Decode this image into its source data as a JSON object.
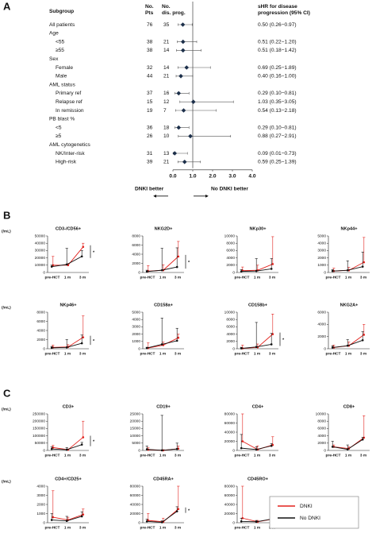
{
  "panel_labels": [
    "A",
    "B",
    "C"
  ],
  "legend": [
    {
      "name": "DNKI",
      "color": "#e3211c"
    },
    {
      "name": "No DNKI",
      "color": "#111111"
    }
  ],
  "chart_data": [
    {
      "type": "forest",
      "headers": {
        "subgroup": "Subgroup",
        "pts": [
          "No.",
          "Pts"
        ],
        "prog": [
          "No.",
          "dis. prog."
        ],
        "shr": [
          "sHR for disease",
          "progression (95% CI)"
        ]
      },
      "xlim": [
        0,
        4
      ],
      "xticks": [
        {
          "value": 0,
          "label": "0.0"
        },
        {
          "value": 1,
          "label": "1.0"
        },
        {
          "value": 2,
          "label": "2.0"
        },
        {
          "value": 3,
          "label": "3.0"
        },
        {
          "value": 4,
          "label": "4.0"
        }
      ],
      "reference_line": 1,
      "left_label": "DNKI better",
      "right_label": "No DNKI better",
      "overall": {
        "label": "All patients",
        "pts": 76,
        "prog": 35,
        "hr": 0.5,
        "lo": 0.26,
        "hi": 0.97,
        "ci_label": "0.50 (0.26−0.97)"
      },
      "groups": [
        {
          "label": "Age",
          "rows": [
            {
              "label": "<55",
              "pts": 38,
              "prog": 21,
              "hr": 0.51,
              "lo": 0.22,
              "hi": 1.2,
              "ci_label": "0.51 (0.22−1.20)"
            },
            {
              "label": "≥55",
              "pts": 38,
              "prog": 14,
              "hr": 0.51,
              "lo": 0.18,
              "hi": 1.42,
              "ci_label": "0.51 (0.18−1.42)"
            }
          ]
        },
        {
          "label": "Sex",
          "rows": [
            {
              "label": "Female",
              "pts": 32,
              "prog": 14,
              "hr": 0.69,
              "lo": 0.25,
              "hi": 1.89,
              "ci_label": "0.69 (0.25−1.89)"
            },
            {
              "label": "Male",
              "pts": 44,
              "prog": 21,
              "hr": 0.4,
              "lo": 0.16,
              "hi": 1.0,
              "ci_label": "0.40 (0.16−1.00)"
            }
          ]
        },
        {
          "label": "AML status",
          "rows": [
            {
              "label": "Primary ref",
              "pts": 37,
              "prog": 16,
              "hr": 0.29,
              "lo": 0.1,
              "hi": 0.81,
              "ci_label": "0.29 (0.10−0.81)"
            },
            {
              "label": "Relapse ref",
              "pts": 15,
              "prog": 12,
              "hr": 1.03,
              "lo": 0.35,
              "hi": 3.05,
              "ci_label": "1.03 (0.35−3.05)"
            },
            {
              "label": "In remission",
              "pts": 19,
              "prog": 7,
              "hr": 0.54,
              "lo": 0.13,
              "hi": 2.18,
              "ci_label": "0.54 (0.13−2.18)"
            }
          ]
        },
        {
          "label": "PB blast %",
          "rows": [
            {
              "label": "<5",
              "pts": 36,
              "prog": 18,
              "hr": 0.29,
              "lo": 0.1,
              "hi": 0.81,
              "ci_label": "0.29 (0.10−0.81)"
            },
            {
              "label": "≥5",
              "pts": 26,
              "prog": 10,
              "hr": 0.88,
              "lo": 0.27,
              "hi": 2.91,
              "ci_label": "0.88 (0.27−2.91)"
            }
          ]
        },
        {
          "label": "AML cytogenetics",
          "rows": [
            {
              "label": "NK/Inter-risk",
              "pts": 31,
              "prog": 13,
              "hr": 0.09,
              "lo": 0.01,
              "hi": 0.73,
              "ci_label": "0.09 (0.01−0.73)"
            },
            {
              "label": "High-risk",
              "pts": 39,
              "prog": 21,
              "hr": 0.59,
              "lo": 0.25,
              "hi": 1.39,
              "ci_label": "0.59 (0.25−1.39)"
            }
          ]
        }
      ]
    },
    {
      "type": "line",
      "title": "CD3-/CD56+",
      "ylabel": "(/mL)",
      "categories": [
        "pre-HCT",
        "1 m",
        "3 m"
      ],
      "ylim": [
        0,
        50000
      ],
      "yticks": [
        0,
        10000,
        20000,
        30000,
        40000,
        50000
      ],
      "significance": "*",
      "series": [
        {
          "values": [
            10000,
            10000,
            35000
          ],
          "upper": [
            22000,
            12000,
            40000
          ]
        },
        {
          "values": [
            8000,
            11000,
            22000
          ],
          "upper": [
            10000,
            33000,
            30000
          ]
        }
      ]
    },
    {
      "type": "line",
      "title": "NKG2D+",
      "categories": [
        "pre-HCT",
        "1 m",
        "3 m"
      ],
      "ylim": [
        0,
        8000
      ],
      "yticks": [
        0,
        2000,
        4000,
        6000,
        8000
      ],
      "significance": "*",
      "series": [
        {
          "values": [
            300,
            500,
            3500
          ],
          "upper": [
            1500,
            1700,
            6800
          ]
        },
        {
          "values": [
            200,
            500,
            1200
          ],
          "upper": [
            500,
            5300,
            5400
          ]
        }
      ]
    },
    {
      "type": "line",
      "title": "NKp30+",
      "categories": [
        "pre-HCT",
        "1 m",
        "3 m"
      ],
      "ylim": [
        0,
        10000
      ],
      "yticks": [
        0,
        2000,
        4000,
        6000,
        8000,
        10000
      ],
      "series": [
        {
          "values": [
            500,
            600,
            2300
          ],
          "upper": [
            1500,
            2000,
            9800
          ]
        },
        {
          "values": [
            300,
            400,
            1000
          ],
          "upper": [
            800,
            3800,
            3800
          ]
        }
      ]
    },
    {
      "type": "line",
      "title": "NKp44+",
      "categories": [
        "pre-HCT",
        "1 m",
        "3 m"
      ],
      "ylim": [
        0,
        5000
      ],
      "yticks": [
        0,
        1000,
        2000,
        3000,
        4000,
        5000
      ],
      "series": [
        {
          "values": [
            200,
            300,
            1400
          ],
          "upper": [
            600,
            700,
            4800
          ]
        },
        {
          "values": [
            200,
            300,
            800
          ],
          "upper": [
            400,
            1600,
            2800
          ]
        }
      ]
    },
    {
      "type": "line",
      "title": "NKp46+",
      "ylabel": "(/mL)",
      "categories": [
        "pre-HCT",
        "1 m",
        "3 m"
      ],
      "ylim": [
        0,
        8000
      ],
      "yticks": [
        0,
        2000,
        4000,
        6000,
        8000
      ],
      "significance": "*",
      "series": [
        {
          "values": [
            300,
            400,
            2500
          ],
          "upper": [
            800,
            900,
            7200
          ]
        },
        {
          "values": [
            200,
            300,
            1200
          ],
          "upper": [
            500,
            2000,
            3000
          ]
        }
      ]
    },
    {
      "type": "line",
      "title": "CD158a+",
      "categories": [
        "pre-HCT",
        "1 m",
        "3 m"
      ],
      "ylim": [
        0,
        5000
      ],
      "yticks": [
        0,
        1000,
        2000,
        3000,
        4000,
        5000
      ],
      "series": [
        {
          "values": [
            100,
            500,
            1500
          ],
          "upper": [
            800,
            900,
            2000
          ]
        },
        {
          "values": [
            100,
            600,
            1100
          ],
          "upper": [
            200,
            4200,
            2800
          ]
        }
      ]
    },
    {
      "type": "line",
      "title": "CD158b+",
      "categories": [
        "pre-HCT",
        "1 m",
        "3 m"
      ],
      "ylim": [
        0,
        10000
      ],
      "yticks": [
        0,
        2000,
        4000,
        6000,
        8000,
        10000
      ],
      "significance": "*",
      "series": [
        {
          "values": [
            100,
            400,
            4000
          ],
          "upper": [
            1000,
            1300,
            9500
          ]
        },
        {
          "values": [
            100,
            500,
            1200
          ],
          "upper": [
            400,
            7200,
            4200
          ]
        }
      ]
    },
    {
      "type": "line",
      "title": "NKG2A+",
      "categories": [
        "pre-HCT",
        "1 m",
        "3 m"
      ],
      "ylim": [
        0,
        6000
      ],
      "yticks": [
        0,
        2000,
        4000,
        6000
      ],
      "series": [
        {
          "values": [
            200,
            500,
            2300
          ],
          "upper": [
            600,
            1100,
            4000
          ]
        },
        {
          "values": [
            200,
            500,
            1400
          ],
          "upper": [
            500,
            1500,
            2800
          ]
        }
      ]
    },
    {
      "type": "line",
      "title": "CD3+",
      "ylabel": "(/mL)",
      "categories": [
        "pre-HCT",
        "1 m",
        "3 m"
      ],
      "ylim": [
        0,
        250000
      ],
      "yticks": [
        0,
        50000,
        100000,
        150000,
        200000,
        250000
      ],
      "significance": "*",
      "series": [
        {
          "values": [
            20000,
            5000,
            90000
          ],
          "upper": [
            35000,
            8000,
            200000
          ]
        },
        {
          "values": [
            10000,
            5000,
            40000
          ],
          "upper": [
            25000,
            20000,
            55000
          ]
        }
      ]
    },
    {
      "type": "line",
      "title": "CD19+",
      "categories": [
        "pre-HCT",
        "1 m",
        "3 m"
      ],
      "ylim": [
        0,
        25000
      ],
      "yticks": [
        0,
        5000,
        10000,
        15000,
        20000,
        25000
      ],
      "series": [
        {
          "values": [
            500,
            50,
            1200
          ],
          "upper": [
            1800,
            500,
            3000
          ]
        },
        {
          "values": [
            800,
            100,
            1000
          ],
          "upper": [
            3000,
            24000,
            5000
          ]
        }
      ]
    },
    {
      "type": "line",
      "title": "CD4+",
      "categories": [
        "pre-HCT",
        "1 m",
        "3 m"
      ],
      "ylim": [
        0,
        80000
      ],
      "yticks": [
        0,
        20000,
        40000,
        60000,
        80000
      ],
      "series": [
        {
          "values": [
            20000,
            2000,
            12000
          ],
          "upper": [
            80000,
            10000,
            30000
          ]
        },
        {
          "values": [
            5000,
            2000,
            10000
          ],
          "upper": [
            35000,
            8000,
            15000
          ]
        }
      ]
    },
    {
      "type": "line",
      "title": "CD8+",
      "categories": [
        "pre-HCT",
        "1 m",
        "3 m"
      ],
      "ylim": [
        0,
        10000
      ],
      "yticks": [
        0,
        2000,
        4000,
        6000,
        8000,
        10000
      ],
      "series": [
        {
          "values": [
            1000,
            500,
            3500
          ],
          "upper": [
            1500,
            1000,
            9500
          ]
        },
        {
          "values": [
            1000,
            300,
            3000
          ],
          "upper": [
            2500,
            1500,
            3600
          ]
        }
      ]
    },
    {
      "type": "line",
      "title": "CD4+/CD25+",
      "ylabel": "(/mL)",
      "categories": [
        "pre-HCT",
        "1 m",
        "3 m"
      ],
      "ylim": [
        0,
        4000
      ],
      "yticks": [
        0,
        1000,
        2000,
        3000,
        4000
      ],
      "series": [
        {
          "values": [
            600,
            300,
            900
          ],
          "upper": [
            3500,
            600,
            1500
          ]
        },
        {
          "values": [
            300,
            200,
            700
          ],
          "upper": [
            1000,
            700,
            1200
          ]
        }
      ]
    },
    {
      "type": "line",
      "title": "CD45RA+",
      "categories": [
        "pre-HCT",
        "1 m",
        "3 m"
      ],
      "ylim": [
        0,
        80000
      ],
      "yticks": [
        0,
        20000,
        40000,
        60000,
        80000
      ],
      "significance": "*",
      "series": [
        {
          "values": [
            5000,
            2000,
            30000
          ],
          "upper": [
            20000,
            10000,
            80000
          ]
        },
        {
          "values": [
            3000,
            1000,
            25000
          ],
          "upper": [
            8000,
            4000,
            35000
          ]
        }
      ]
    },
    {
      "type": "line",
      "title": "CD45RO+",
      "categories": [
        "pre-HCT",
        "1 m",
        "3 m"
      ],
      "ylim": [
        0,
        80000
      ],
      "yticks": [
        0,
        20000,
        40000,
        60000,
        80000
      ],
      "series": [
        {
          "values": [
            10000,
            2000,
            8000
          ],
          "upper": [
            80000,
            5000,
            20000
          ]
        },
        {
          "values": [
            3000,
            2000,
            8000
          ],
          "upper": [
            10000,
            5000,
            18000
          ]
        }
      ]
    }
  ]
}
